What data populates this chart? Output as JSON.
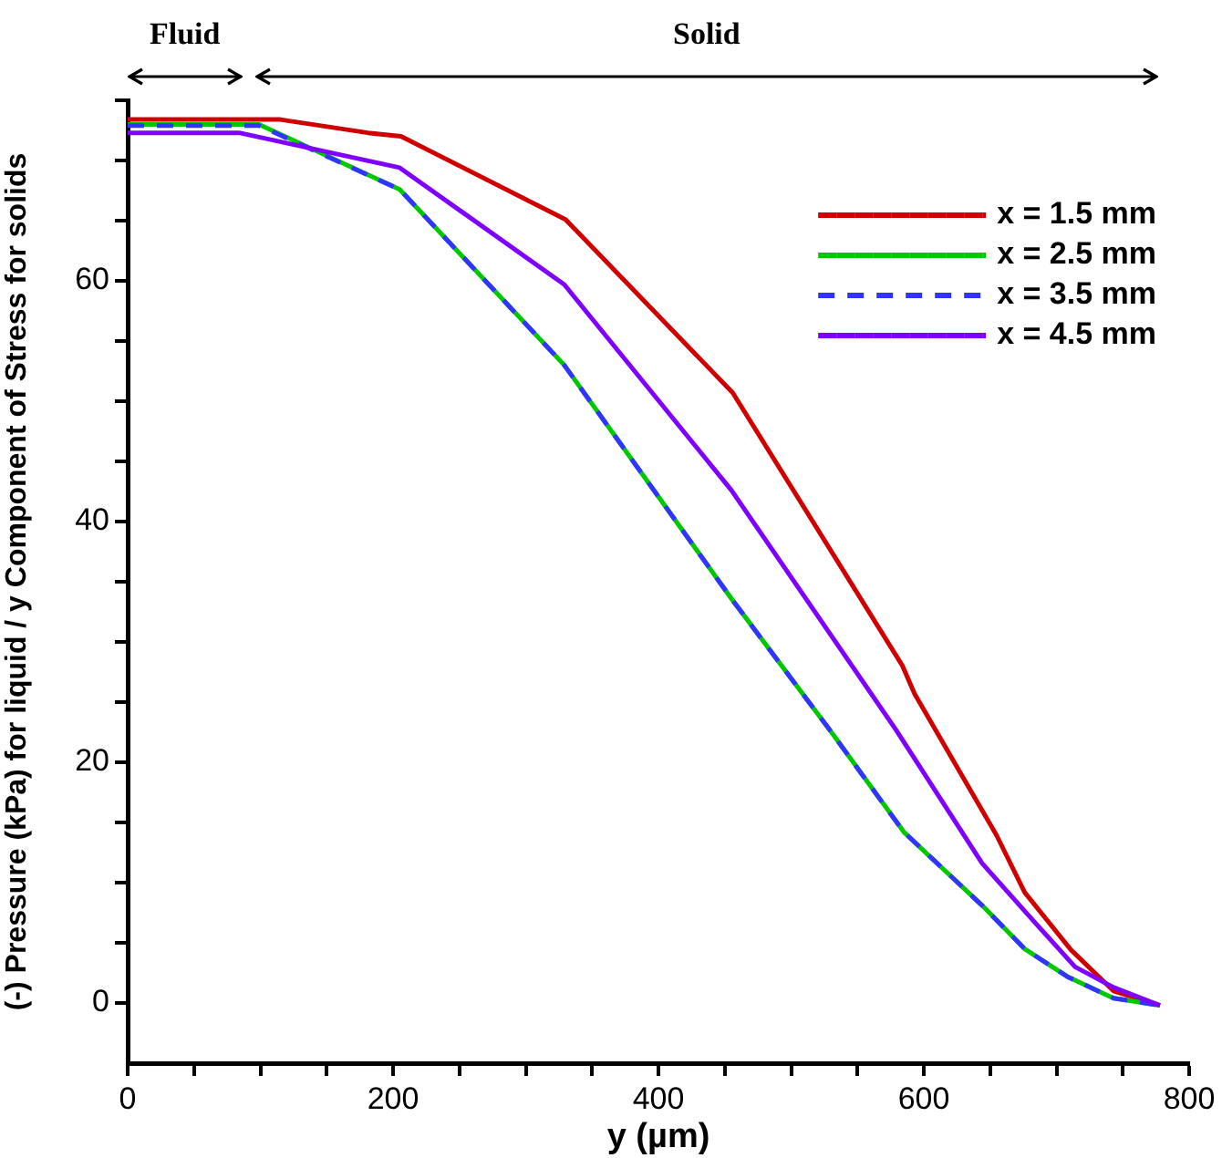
{
  "chart_data": {
    "type": "line",
    "xlabel": "y (µm)",
    "ylabel": "(-) Pressure (kPa) for liquid / y Component of Stress for solids",
    "annotations": [
      "Fluid",
      "Solid"
    ],
    "xlim": [
      0,
      800
    ],
    "ylim": [
      -5,
      75
    ],
    "xticks": [
      0,
      {
        "value": 50,
        "label": null
      },
      {
        "value": 100,
        "label": null
      },
      {
        "value": 150,
        "label": null
      },
      200,
      {
        "value": 250,
        "label": null
      },
      {
        "value": 300,
        "label": null
      },
      {
        "value": 350,
        "label": null
      },
      400,
      {
        "value": 450,
        "label": null
      },
      {
        "value": 500,
        "label": null
      },
      {
        "value": 550,
        "label": null
      },
      600,
      {
        "value": 650,
        "label": null
      },
      {
        "value": 700,
        "label": null
      },
      {
        "value": 750,
        "label": null
      },
      800
    ],
    "yticks": [
      0,
      {
        "value": 5,
        "label": null
      },
      {
        "value": 10,
        "label": null
      },
      {
        "value": 15,
        "label": null
      },
      20,
      {
        "value": 25,
        "label": null
      },
      {
        "value": 30,
        "label": null
      },
      {
        "value": 35,
        "label": null
      },
      40,
      {
        "value": 45,
        "label": null
      },
      {
        "value": 50,
        "label": null
      },
      {
        "value": 55,
        "label": null
      },
      60,
      {
        "value": 65,
        "label": null
      },
      {
        "value": 70,
        "label": null
      },
      {
        "value": 75,
        "label": null
      }
    ],
    "grid": false,
    "legend": "top right",
    "marker": "none",
    "series": [
      {
        "name": "x = 1.5 mm",
        "color": "#d00000",
        "line_style": "solid",
        "x": [
          0,
          115,
          181,
          206,
          330,
          456,
          584,
          593,
          655,
          676,
          711,
          743,
          778
        ],
        "values": [
          73.4,
          73.4,
          72.3,
          72.0,
          65.1,
          50.7,
          28.0,
          25.7,
          13.9,
          9.2,
          4.4,
          1.0,
          -0.2
        ]
      },
      {
        "name": "x = 2.5 mm",
        "color": "#00c800",
        "line_style": "solid",
        "x": [
          0,
          99,
          205,
          329,
          455,
          529,
          585,
          644,
          676,
          708,
          743,
          778
        ],
        "values": [
          73.0,
          73.0,
          67.6,
          53.0,
          33.6,
          22.7,
          14.2,
          8.1,
          4.5,
          2.2,
          0.4,
          -0.2
        ]
      },
      {
        "name": "x = 3.5 mm",
        "color": "#3333ff",
        "line_style": "dashed",
        "x": [
          0,
          99,
          205,
          329,
          455,
          529,
          585,
          644,
          676,
          708,
          743,
          778
        ],
        "values": [
          72.9,
          72.9,
          67.6,
          53.0,
          33.6,
          22.7,
          14.2,
          8.1,
          4.5,
          2.2,
          0.4,
          -0.2
        ]
      },
      {
        "name": "x = 4.5 mm",
        "color": "#8000ff",
        "line_style": "solid",
        "x": [
          0,
          84,
          205,
          329,
          455,
          579,
          644,
          682,
          714,
          743,
          778
        ],
        "values": [
          72.3,
          72.3,
          69.4,
          59.7,
          42.6,
          22.7,
          11.6,
          6.9,
          3.0,
          1.3,
          -0.2
        ]
      }
    ]
  }
}
